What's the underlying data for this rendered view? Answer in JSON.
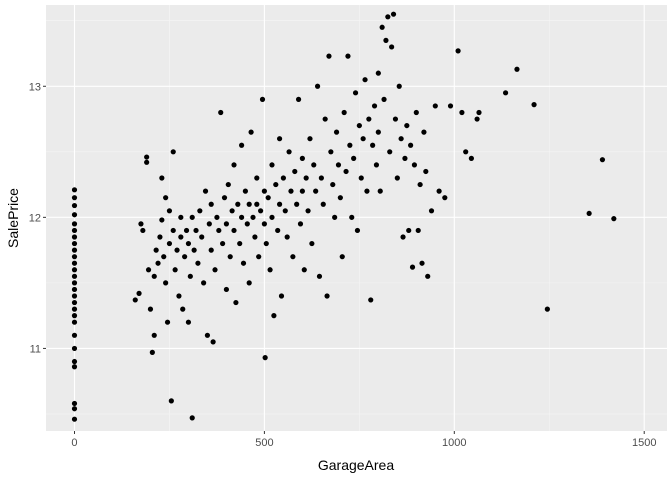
{
  "chart_data": {
    "type": "scatter",
    "title": "",
    "xlabel": "GarageArea",
    "ylabel": "SalePrice",
    "xlim": [
      -75,
      1560
    ],
    "ylim": [
      10.37,
      13.62
    ],
    "x_ticks": [
      0,
      500,
      1000,
      1500
    ],
    "x_tick_labels": [
      "0",
      "500",
      "1000",
      "1500"
    ],
    "y_ticks": [
      11,
      12,
      13
    ],
    "y_tick_labels": [
      "11",
      "12",
      "13"
    ],
    "grid": true,
    "legend": "none",
    "colors": {
      "panel_background": "#EBEBEB",
      "grid_major": "#FFFFFF",
      "grid_minor": "#F5F5F5",
      "point": "#000000",
      "tick_label": "#4D4D4D"
    },
    "points": [
      [
        0,
        10.46
      ],
      [
        0,
        10.54
      ],
      [
        0,
        10.58
      ],
      [
        0,
        10.86
      ],
      [
        0,
        10.9
      ],
      [
        0,
        11.0
      ],
      [
        0,
        11.1
      ],
      [
        0,
        11.2
      ],
      [
        0,
        11.25
      ],
      [
        0,
        11.3
      ],
      [
        0,
        11.35
      ],
      [
        0,
        11.4
      ],
      [
        0,
        11.45
      ],
      [
        0,
        11.5
      ],
      [
        0,
        11.55
      ],
      [
        0,
        11.6
      ],
      [
        0,
        11.65
      ],
      [
        0,
        11.7
      ],
      [
        0,
        11.75
      ],
      [
        0,
        11.8
      ],
      [
        0,
        11.85
      ],
      [
        0,
        11.9
      ],
      [
        0,
        11.95
      ],
      [
        0,
        12.02
      ],
      [
        0,
        12.09
      ],
      [
        0,
        12.15
      ],
      [
        0,
        12.21
      ],
      [
        160,
        11.37
      ],
      [
        170,
        11.42
      ],
      [
        175,
        11.95
      ],
      [
        180,
        11.9
      ],
      [
        190,
        12.42
      ],
      [
        190,
        12.46
      ],
      [
        195,
        11.6
      ],
      [
        200,
        11.3
      ],
      [
        205,
        10.97
      ],
      [
        210,
        11.1
      ],
      [
        210,
        11.55
      ],
      [
        215,
        11.75
      ],
      [
        220,
        11.65
      ],
      [
        225,
        11.85
      ],
      [
        230,
        11.98
      ],
      [
        230,
        12.3
      ],
      [
        235,
        11.7
      ],
      [
        240,
        11.5
      ],
      [
        240,
        12.15
      ],
      [
        245,
        11.2
      ],
      [
        250,
        11.8
      ],
      [
        250,
        12.05
      ],
      [
        255,
        10.6
      ],
      [
        260,
        11.9
      ],
      [
        260,
        12.5
      ],
      [
        265,
        11.6
      ],
      [
        270,
        11.75
      ],
      [
        275,
        11.4
      ],
      [
        280,
        11.85
      ],
      [
        280,
        12.0
      ],
      [
        285,
        11.3
      ],
      [
        290,
        11.7
      ],
      [
        295,
        11.9
      ],
      [
        300,
        11.8
      ],
      [
        300,
        11.2
      ],
      [
        305,
        11.55
      ],
      [
        310,
        10.47
      ],
      [
        310,
        12.0
      ],
      [
        315,
        11.75
      ],
      [
        320,
        11.9
      ],
      [
        325,
        11.65
      ],
      [
        330,
        12.05
      ],
      [
        335,
        11.85
      ],
      [
        340,
        11.5
      ],
      [
        345,
        12.2
      ],
      [
        350,
        11.1
      ],
      [
        355,
        11.95
      ],
      [
        360,
        11.75
      ],
      [
        360,
        12.1
      ],
      [
        365,
        11.05
      ],
      [
        370,
        11.6
      ],
      [
        375,
        12.0
      ],
      [
        380,
        11.9
      ],
      [
        385,
        12.8
      ],
      [
        390,
        11.8
      ],
      [
        395,
        12.15
      ],
      [
        400,
        11.45
      ],
      [
        400,
        11.95
      ],
      [
        405,
        12.25
      ],
      [
        410,
        11.7
      ],
      [
        415,
        12.05
      ],
      [
        420,
        11.9
      ],
      [
        420,
        12.4
      ],
      [
        425,
        11.35
      ],
      [
        430,
        12.1
      ],
      [
        435,
        11.8
      ],
      [
        440,
        12.0
      ],
      [
        440,
        12.55
      ],
      [
        445,
        11.65
      ],
      [
        450,
        12.2
      ],
      [
        455,
        11.95
      ],
      [
        460,
        12.1
      ],
      [
        460,
        11.5
      ],
      [
        465,
        12.65
      ],
      [
        470,
        12.0
      ],
      [
        475,
        11.85
      ],
      [
        480,
        12.3
      ],
      [
        480,
        12.1
      ],
      [
        485,
        11.7
      ],
      [
        490,
        12.05
      ],
      [
        495,
        12.9
      ],
      [
        500,
        11.95
      ],
      [
        500,
        12.2
      ],
      [
        502,
        10.93
      ],
      [
        505,
        11.8
      ],
      [
        510,
        12.15
      ],
      [
        515,
        11.6
      ],
      [
        520,
        12.4
      ],
      [
        520,
        12.0
      ],
      [
        525,
        11.25
      ],
      [
        530,
        12.25
      ],
      [
        535,
        11.9
      ],
      [
        540,
        12.1
      ],
      [
        540,
        12.6
      ],
      [
        545,
        11.4
      ],
      [
        550,
        12.3
      ],
      [
        555,
        12.05
      ],
      [
        560,
        11.85
      ],
      [
        565,
        12.5
      ],
      [
        570,
        12.2
      ],
      [
        575,
        11.7
      ],
      [
        580,
        12.35
      ],
      [
        585,
        12.1
      ],
      [
        590,
        12.9
      ],
      [
        595,
        11.95
      ],
      [
        600,
        12.2
      ],
      [
        600,
        12.45
      ],
      [
        605,
        11.6
      ],
      [
        610,
        12.3
      ],
      [
        615,
        12.05
      ],
      [
        620,
        12.6
      ],
      [
        625,
        11.8
      ],
      [
        630,
        12.4
      ],
      [
        635,
        12.2
      ],
      [
        640,
        13.0
      ],
      [
        645,
        11.55
      ],
      [
        650,
        12.3
      ],
      [
        655,
        12.1
      ],
      [
        660,
        12.75
      ],
      [
        665,
        11.4
      ],
      [
        670,
        13.23
      ],
      [
        675,
        12.5
      ],
      [
        680,
        12.25
      ],
      [
        685,
        12.0
      ],
      [
        690,
        12.65
      ],
      [
        695,
        12.4
      ],
      [
        700,
        12.15
      ],
      [
        705,
        11.7
      ],
      [
        710,
        12.8
      ],
      [
        715,
        12.35
      ],
      [
        720,
        13.23
      ],
      [
        725,
        12.55
      ],
      [
        730,
        12.0
      ],
      [
        735,
        12.45
      ],
      [
        740,
        12.95
      ],
      [
        745,
        11.9
      ],
      [
        750,
        12.7
      ],
      [
        755,
        12.3
      ],
      [
        760,
        12.6
      ],
      [
        765,
        13.05
      ],
      [
        770,
        12.2
      ],
      [
        775,
        12.75
      ],
      [
        780,
        11.37
      ],
      [
        785,
        12.55
      ],
      [
        790,
        12.85
      ],
      [
        795,
        12.4
      ],
      [
        800,
        13.1
      ],
      [
        800,
        12.65
      ],
      [
        805,
        12.2
      ],
      [
        810,
        13.45
      ],
      [
        815,
        12.9
      ],
      [
        820,
        13.35
      ],
      [
        825,
        13.53
      ],
      [
        830,
        12.5
      ],
      [
        835,
        13.3
      ],
      [
        840,
        13.55
      ],
      [
        845,
        12.75
      ],
      [
        850,
        12.3
      ],
      [
        855,
        13.0
      ],
      [
        860,
        12.6
      ],
      [
        865,
        11.85
      ],
      [
        870,
        12.45
      ],
      [
        875,
        12.7
      ],
      [
        880,
        11.9
      ],
      [
        885,
        12.55
      ],
      [
        890,
        11.62
      ],
      [
        895,
        12.4
      ],
      [
        900,
        12.8
      ],
      [
        905,
        11.9
      ],
      [
        910,
        12.25
      ],
      [
        915,
        11.65
      ],
      [
        920,
        12.65
      ],
      [
        925,
        12.35
      ],
      [
        930,
        11.55
      ],
      [
        940,
        12.05
      ],
      [
        950,
        12.85
      ],
      [
        960,
        12.2
      ],
      [
        975,
        12.15
      ],
      [
        990,
        12.85
      ],
      [
        1010,
        13.27
      ],
      [
        1020,
        12.8
      ],
      [
        1030,
        12.5
      ],
      [
        1045,
        12.45
      ],
      [
        1060,
        12.75
      ],
      [
        1065,
        12.8
      ],
      [
        1135,
        12.95
      ],
      [
        1165,
        13.13
      ],
      [
        1210,
        12.86
      ],
      [
        1245,
        11.3
      ],
      [
        1355,
        12.03
      ],
      [
        1390,
        12.44
      ],
      [
        1420,
        11.99
      ]
    ]
  }
}
